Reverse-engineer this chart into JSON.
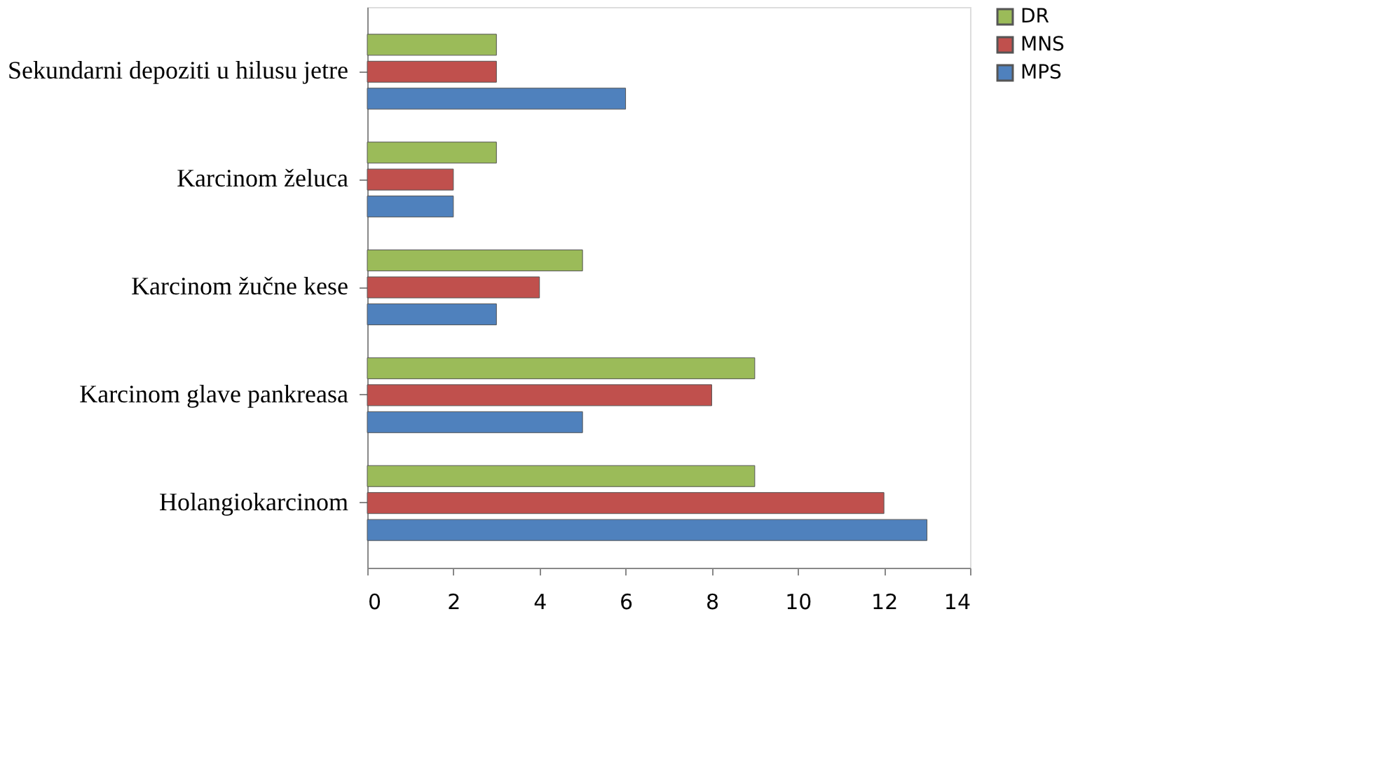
{
  "chart_data": {
    "type": "bar",
    "orientation": "horizontal",
    "categories": [
      "Sekundarni depoziti u hilusu jetre",
      "Karcinom želuca",
      "Karcinom žučne kese",
      "Karcinom glave pankreasa",
      "Holangiokarcinom"
    ],
    "series": [
      {
        "name": "DR",
        "color": "#9bbb59",
        "values": [
          3,
          3,
          5,
          9,
          9
        ]
      },
      {
        "name": "MNS",
        "color": "#c0504d",
        "values": [
          3,
          2,
          4,
          8,
          12
        ]
      },
      {
        "name": "MPS",
        "color": "#4f81bd",
        "values": [
          6,
          2,
          3,
          5,
          13
        ]
      }
    ],
    "xlim": [
      0,
      14
    ],
    "xticks": [
      0,
      2,
      4,
      6,
      8,
      10,
      12,
      14
    ],
    "grid": false,
    "legend": "right"
  }
}
